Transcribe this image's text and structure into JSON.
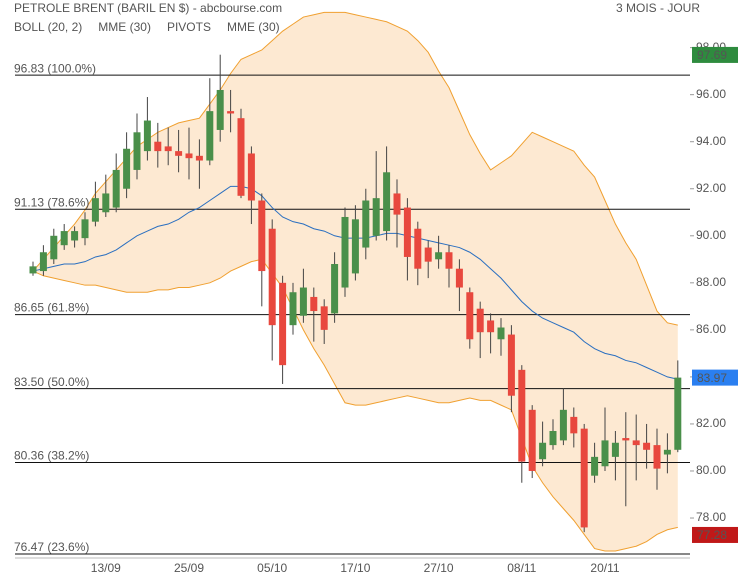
{
  "chart_data": {
    "type": "candlestick",
    "title": "PETROLE BRENT (BARIL EN $) - abcbourse.com",
    "period": "3 MOIS - JOUR",
    "legend": [
      {
        "name": "BOLL (20, 2)",
        "color": "#f0a030"
      },
      {
        "name": "MME (30)",
        "color": "#2a3fc0"
      },
      {
        "name": "PIVOTS",
        "color": "#666666"
      },
      {
        "name": "MME (30)",
        "color": "#2a6fc0"
      }
    ],
    "categories": [
      null,
      null,
      null,
      null,
      null,
      null,
      null,
      "13/09",
      null,
      null,
      null,
      null,
      null,
      null,
      null,
      "25/09",
      null,
      null,
      null,
      null,
      null,
      null,
      null,
      "05/10",
      null,
      null,
      null,
      null,
      null,
      null,
      null,
      "17/10",
      null,
      null,
      null,
      null,
      null,
      null,
      null,
      "27/10",
      null,
      null,
      null,
      null,
      null,
      null,
      null,
      "08/11",
      null,
      null,
      null,
      null,
      null,
      null,
      null,
      "20/11",
      null,
      null,
      null,
      null,
      null,
      null,
      null
    ],
    "open": [
      88.4,
      88.5,
      89.0,
      89.6,
      89.8,
      89.9,
      90.6,
      91.0,
      91.2,
      92.0,
      92.8,
      93.6,
      94.0,
      93.8,
      93.6,
      93.5,
      93.4,
      93.2,
      94.5,
      95.3,
      95.0,
      93.5,
      91.5,
      90.3,
      88.0,
      86.2,
      86.6,
      87.4,
      87.0,
      86.7,
      87.8,
      88.4,
      89.5,
      90.0,
      90.2,
      91.8,
      91.2,
      90.3,
      89.5,
      89.0,
      89.3,
      88.6,
      87.6,
      86.9,
      86.4,
      85.6,
      85.8,
      84.3,
      82.6,
      80.5,
      81.1,
      81.3,
      82.3,
      81.8,
      79.8,
      80.2,
      80.6,
      81.4,
      81.3,
      81.2,
      81.1,
      80.7,
      80.9
    ],
    "high": [
      88.9,
      89.6,
      90.3,
      90.5,
      90.4,
      91.0,
      92.3,
      92.6,
      93.5,
      94.4,
      95.2,
      95.9,
      94.8,
      94.6,
      94.5,
      94.6,
      94.1,
      96.7,
      97.7,
      96.2,
      95.4,
      93.8,
      91.8,
      90.7,
      88.3,
      88.0,
      88.6,
      87.8,
      87.3,
      89.3,
      91.2,
      91.3,
      92.0,
      93.6,
      93.8,
      92.4,
      91.6,
      90.6,
      89.8,
      90.0,
      89.6,
      89.0,
      87.8,
      87.2,
      86.7,
      86.5,
      86.2,
      84.5,
      82.8,
      82.1,
      82.2,
      83.5,
      82.7,
      82.0,
      81.2,
      82.7,
      81.7,
      82.5,
      82.4,
      82.0,
      81.8,
      81.6,
      84.7
    ],
    "low": [
      88.3,
      88.3,
      88.8,
      89.4,
      89.5,
      89.6,
      90.4,
      90.8,
      91.0,
      91.6,
      92.4,
      93.2,
      92.9,
      93.0,
      92.7,
      92.4,
      92.0,
      93.0,
      94.0,
      94.4,
      91.6,
      90.5,
      87.0,
      84.7,
      83.7,
      85.8,
      86.3,
      85.5,
      85.4,
      86.3,
      87.4,
      88.1,
      89.0,
      89.8,
      89.8,
      89.5,
      88.1,
      87.9,
      88.2,
      88.6,
      87.8,
      86.8,
      85.2,
      84.8,
      85.0,
      84.9,
      82.5,
      79.5,
      79.7,
      80.2,
      80.9,
      81.1,
      81.0,
      77.4,
      79.5,
      80.0,
      79.6,
      78.5,
      79.6,
      80.1,
      79.2,
      79.9,
      80.8
    ],
    "close": [
      88.7,
      89.3,
      90.0,
      90.2,
      90.2,
      90.7,
      91.6,
      91.8,
      92.8,
      93.7,
      94.4,
      94.9,
      93.6,
      93.6,
      93.4,
      93.3,
      93.2,
      95.3,
      96.2,
      95.2,
      91.7,
      91.5,
      88.5,
      86.2,
      84.5,
      87.6,
      87.8,
      86.8,
      86.0,
      88.8,
      90.8,
      90.7,
      91.5,
      91.6,
      92.7,
      90.9,
      89.1,
      88.6,
      88.9,
      89.3,
      88.6,
      87.8,
      85.6,
      85.9,
      85.9,
      86.1,
      83.2,
      80.4,
      80.0,
      81.2,
      81.7,
      82.6,
      81.6,
      77.6,
      80.6,
      81.3,
      81.2,
      81.3,
      81.1,
      80.9,
      80.1,
      80.9,
      83.97
    ],
    "up_color": "#4a8f4a",
    "down_color": "#e8483e",
    "bollinger": {
      "color": "#f0a030",
      "fill": "#fde9d2",
      "upper": [
        88.5,
        89.0,
        89.5,
        90.0,
        90.5,
        91.1,
        91.8,
        92.3,
        92.8,
        93.3,
        93.8,
        94.1,
        94.4,
        94.6,
        94.8,
        94.9,
        95.0,
        95.6,
        96.2,
        96.9,
        97.5,
        97.7,
        97.9,
        98.3,
        98.7,
        99.0,
        99.3,
        99.4,
        99.5,
        99.5,
        99.5,
        99.4,
        99.3,
        99.2,
        99.1,
        98.9,
        98.7,
        98.3,
        97.8,
        97.0,
        96.3,
        95.3,
        94.3,
        93.5,
        92.8,
        93.1,
        93.4,
        93.9,
        94.4,
        94.2,
        94.0,
        93.8,
        93.6,
        93.0,
        92.5,
        91.5,
        90.5,
        89.7,
        89.0,
        87.9,
        86.8,
        86.3,
        86.2
      ],
      "lower": [
        88.5,
        88.3,
        88.2,
        88.1,
        88.0,
        87.9,
        87.9,
        87.8,
        87.7,
        87.6,
        87.6,
        87.6,
        87.7,
        87.7,
        87.8,
        87.8,
        87.9,
        88.0,
        88.2,
        88.5,
        88.7,
        88.9,
        89.0,
        88.4,
        87.8,
        86.9,
        86.0,
        85.2,
        84.5,
        83.7,
        82.9,
        82.8,
        82.8,
        82.9,
        83.0,
        83.1,
        83.2,
        83.1,
        83.0,
        82.9,
        82.9,
        83.0,
        83.1,
        83.0,
        83.0,
        82.8,
        82.6,
        81.4,
        80.2,
        79.5,
        78.9,
        78.4,
        77.9,
        77.3,
        76.7,
        76.6,
        76.6,
        76.7,
        76.8,
        77.0,
        77.3,
        77.5,
        77.6
      ]
    },
    "mme": {
      "color": "#2a6fc0",
      "values": [
        88.5,
        88.6,
        88.7,
        88.8,
        88.8,
        88.9,
        89.1,
        89.2,
        89.4,
        89.7,
        90.0,
        90.2,
        90.4,
        90.5,
        90.7,
        91.0,
        91.2,
        91.5,
        91.8,
        92.1,
        92.1,
        92.0,
        91.7,
        91.2,
        90.8,
        90.6,
        90.5,
        90.3,
        90.2,
        90.0,
        89.9,
        89.9,
        89.9,
        90.0,
        90.1,
        90.1,
        90.0,
        89.9,
        89.8,
        89.7,
        89.6,
        89.5,
        89.3,
        89.0,
        88.6,
        88.2,
        87.7,
        87.2,
        86.8,
        86.5,
        86.3,
        86.1,
        85.9,
        85.5,
        85.2,
        85.0,
        84.9,
        84.7,
        84.6,
        84.4,
        84.2,
        84.0,
        83.9
      ]
    },
    "pivots": [
      {
        "value": 96.83,
        "label": "96.83 (100.0%)"
      },
      {
        "value": 91.13,
        "label": "91.13 (78.6%)"
      },
      {
        "value": 86.65,
        "label": "86.65 (61.8%)"
      },
      {
        "value": 83.5,
        "label": "83.50 (50.0%)"
      },
      {
        "value": 80.36,
        "label": "80.36 (38.2%)"
      },
      {
        "value": 76.47,
        "label": "76.47 (23.6%)"
      }
    ],
    "tags": [
      {
        "value": 97.69,
        "label": "97.69",
        "color": "#2e8b3e"
      },
      {
        "value": 83.97,
        "label": "83.97",
        "color": "#2a7ff0"
      },
      {
        "value": 77.28,
        "label": "77.28",
        "color": "#c01818"
      }
    ],
    "ylim": [
      76.3,
      99.6
    ],
    "yticks": [
      {
        "value": 78,
        "label": "78.00"
      },
      {
        "value": 80,
        "label": "80.00"
      },
      {
        "value": 82,
        "label": "82.00"
      },
      {
        "value": 84,
        "label": "84.00"
      },
      {
        "value": 86,
        "label": "86.00"
      },
      {
        "value": 88,
        "label": "88.00"
      },
      {
        "value": 90,
        "label": "90.00"
      },
      {
        "value": 92,
        "label": "92.00"
      },
      {
        "value": 94,
        "label": "94.00"
      },
      {
        "value": 96,
        "label": "96.00"
      },
      {
        "value": 98,
        "label": "98.00"
      }
    ]
  }
}
